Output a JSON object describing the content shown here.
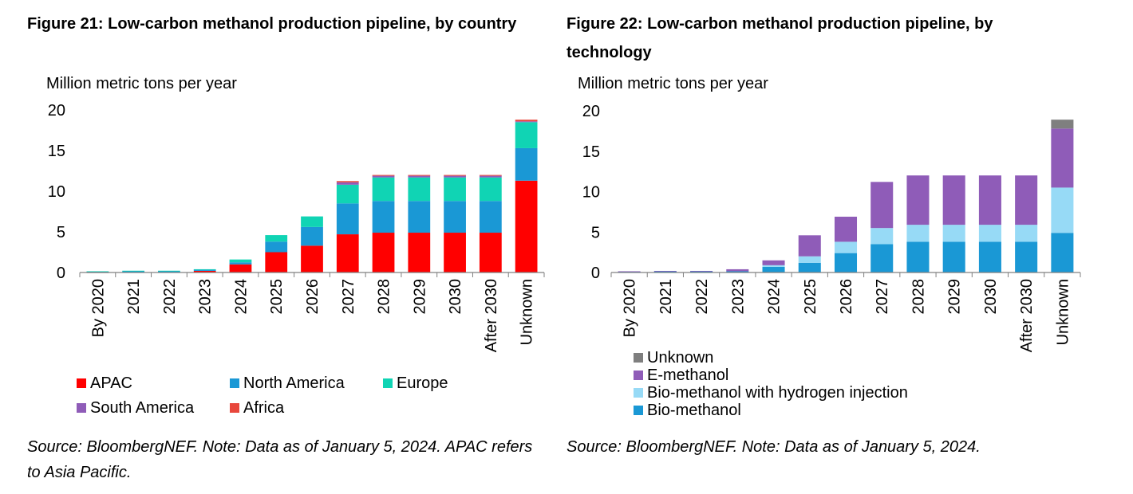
{
  "figures": [
    {
      "title": "Figure 21: Low-carbon methanol production pipeline, by country",
      "unit": "Million metric tons per year",
      "source": "Source: BloombergNEF. Note: Data as of January 5, 2024. APAC refers to Asia Pacific.",
      "legend": [
        {
          "name": "APAC",
          "color": "#ff0000"
        },
        {
          "name": "North America",
          "color": "#1a98d5"
        },
        {
          "name": "Europe",
          "color": "#10d4b4"
        },
        {
          "name": "South America",
          "color": "#8f5cb8"
        },
        {
          "name": "Africa",
          "color": "#e8473c"
        }
      ]
    },
    {
      "title": "Figure 22: Low-carbon methanol production pipeline, by technology",
      "unit": "Million metric tons per year",
      "source": "Source: BloombergNEF. Note: Data as of January 5, 2024.",
      "legend": [
        {
          "name": "Unknown",
          "color": "#7f7f7f"
        },
        {
          "name": "E-methanol",
          "color": "#8f5cb8"
        },
        {
          "name": "Bio-methanol with hydrogen injection",
          "color": "#97daf6"
        },
        {
          "name": "Bio-methanol",
          "color": "#1a98d5"
        }
      ]
    }
  ],
  "chart_data": [
    {
      "type": "bar",
      "stacked": true,
      "title": "Figure 21: Low-carbon methanol production pipeline, by country",
      "ylabel": "Million metric tons per year",
      "xlabel": "",
      "ylim": [
        0,
        20
      ],
      "yticks": [
        0,
        5,
        10,
        15,
        20
      ],
      "grid": false,
      "categories": [
        "By 2020",
        "2021",
        "2022",
        "2023",
        "2024",
        "2025",
        "2026",
        "2027",
        "2028",
        "2029",
        "2030",
        "After 2030",
        "Unknown"
      ],
      "series": [
        {
          "name": "APAC",
          "color": "#ff0000",
          "values": [
            0.02,
            0.05,
            0.05,
            0.2,
            1.0,
            2.5,
            3.3,
            4.7,
            4.9,
            4.9,
            4.9,
            4.9,
            11.3
          ]
        },
        {
          "name": "North America",
          "color": "#1a98d5",
          "values": [
            0.08,
            0.1,
            0.1,
            0.15,
            0.25,
            1.3,
            2.3,
            3.8,
            3.9,
            3.9,
            3.9,
            3.9,
            4.0
          ]
        },
        {
          "name": "Europe",
          "color": "#10d4b4",
          "values": [
            0.05,
            0.07,
            0.07,
            0.05,
            0.35,
            0.8,
            1.3,
            2.3,
            2.9,
            2.9,
            2.9,
            2.9,
            3.2
          ]
        },
        {
          "name": "South America",
          "color": "#8f5cb8",
          "values": [
            0,
            0,
            0,
            0,
            0,
            0,
            0,
            0.3,
            0.2,
            0.2,
            0.2,
            0.2,
            0.1
          ]
        },
        {
          "name": "Africa",
          "color": "#e8473c",
          "values": [
            0,
            0,
            0,
            0,
            0,
            0,
            0,
            0.15,
            0.1,
            0.1,
            0.1,
            0.1,
            0.2
          ]
        }
      ],
      "legend_position": "bottom"
    },
    {
      "type": "bar",
      "stacked": true,
      "title": "Figure 22: Low-carbon methanol production pipeline, by technology",
      "ylabel": "Million metric tons per year",
      "xlabel": "",
      "ylim": [
        0,
        20
      ],
      "yticks": [
        0,
        5,
        10,
        15,
        20
      ],
      "grid": false,
      "categories": [
        "By 2020",
        "2021",
        "2022",
        "2023",
        "2024",
        "2025",
        "2026",
        "2027",
        "2028",
        "2029",
        "2030",
        "After 2030",
        "Unknown"
      ],
      "series": [
        {
          "name": "Bio-methanol",
          "color": "#1a98d5",
          "values": [
            0.1,
            0.15,
            0.15,
            0.15,
            0.7,
            1.2,
            2.4,
            3.5,
            3.8,
            3.8,
            3.8,
            3.8,
            4.9
          ]
        },
        {
          "name": "Bio-methanol with hydrogen injection",
          "color": "#97daf6",
          "values": [
            0,
            0,
            0,
            0,
            0.2,
            0.8,
            1.4,
            2.0,
            2.1,
            2.1,
            2.1,
            2.1,
            5.6
          ]
        },
        {
          "name": "E-methanol",
          "color": "#8f5cb8",
          "values": [
            0.05,
            0.05,
            0.05,
            0.25,
            0.6,
            2.6,
            3.1,
            5.7,
            6.1,
            6.1,
            6.1,
            6.1,
            7.3
          ]
        },
        {
          "name": "Unknown",
          "color": "#7f7f7f",
          "values": [
            0,
            0,
            0,
            0,
            0,
            0,
            0,
            0,
            0,
            0,
            0,
            0,
            1.1
          ]
        }
      ],
      "legend_position": "bottom-left"
    }
  ]
}
